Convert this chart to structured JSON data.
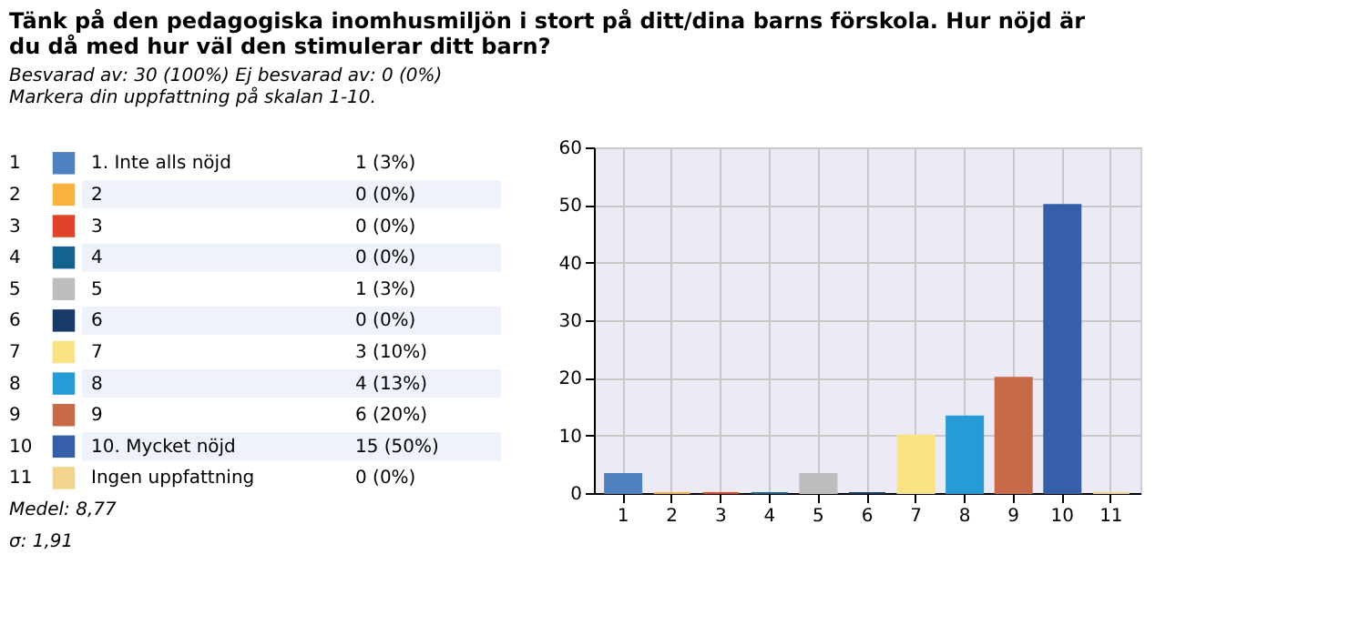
{
  "chart_data": {
    "type": "bar",
    "title": "Tänk på den pedagogiska inomhusmiljön i stort på ditt/dina barns förskola. Hur nöjd är du då med hur väl den stimulerar ditt barn?",
    "subtitle": "Besvarad av: 30 (100%) Ej besvarad av: 0 (0%)",
    "annotations": [
      "Markera din uppfattning på skalan 1-10.",
      "Medel: 8,77",
      "σ: 1,91",
      "1 (3%)",
      "0 (0%)",
      "0 (0%)",
      "0 (0%)",
      "1 (3%)",
      "0 (0%)",
      "3 (10%)",
      "4 (13%)",
      "6 (20%)",
      "15 (50%)",
      "0 (0%)"
    ],
    "categories": [
      "1",
      "2",
      "3",
      "4",
      "5",
      "6",
      "7",
      "8",
      "9",
      "10",
      "11"
    ],
    "series": [
      {
        "name": "1. Inte alls nöjd",
        "color": "#4f81c0",
        "values": [
          3.3,
          null,
          null,
          null,
          null,
          null,
          null,
          null,
          null,
          null,
          null
        ]
      },
      {
        "name": "2",
        "color": "#f9b23d",
        "values": [
          null,
          0,
          null,
          null,
          null,
          null,
          null,
          null,
          null,
          null,
          null
        ]
      },
      {
        "name": "3",
        "color": "#e0432a",
        "values": [
          null,
          null,
          0,
          null,
          null,
          null,
          null,
          null,
          null,
          null,
          null
        ]
      },
      {
        "name": "4",
        "color": "#14628e",
        "values": [
          null,
          null,
          null,
          0,
          null,
          null,
          null,
          null,
          null,
          null,
          null
        ]
      },
      {
        "name": "5",
        "color": "#bdbdbd",
        "values": [
          null,
          null,
          null,
          null,
          3.3,
          null,
          null,
          null,
          null,
          null,
          null
        ]
      },
      {
        "name": "6",
        "color": "#173a66",
        "values": [
          null,
          null,
          null,
          null,
          null,
          0,
          null,
          null,
          null,
          null,
          null
        ]
      },
      {
        "name": "7",
        "color": "#fbe385",
        "values": [
          null,
          null,
          null,
          null,
          null,
          null,
          10,
          null,
          null,
          null,
          null
        ]
      },
      {
        "name": "8",
        "color": "#269bd8",
        "values": [
          null,
          null,
          null,
          null,
          null,
          null,
          null,
          13.3,
          null,
          null,
          null
        ]
      },
      {
        "name": "9",
        "color": "#c8694a",
        "values": [
          null,
          null,
          null,
          null,
          null,
          null,
          null,
          null,
          20,
          null,
          null
        ]
      },
      {
        "name": "10. Mycket nöjd",
        "color": "#355fa8",
        "values": [
          null,
          null,
          null,
          null,
          null,
          null,
          null,
          null,
          null,
          50,
          null
        ]
      },
      {
        "name": "Ingen uppfattning",
        "color": "#f2d48c",
        "values": [
          null,
          null,
          null,
          null,
          null,
          null,
          null,
          null,
          null,
          null,
          0
        ]
      }
    ],
    "ylim": [
      0,
      60
    ],
    "yticks": [
      0,
      10,
      20,
      30,
      40,
      50,
      60
    ],
    "grid": true,
    "legend": "left"
  }
}
